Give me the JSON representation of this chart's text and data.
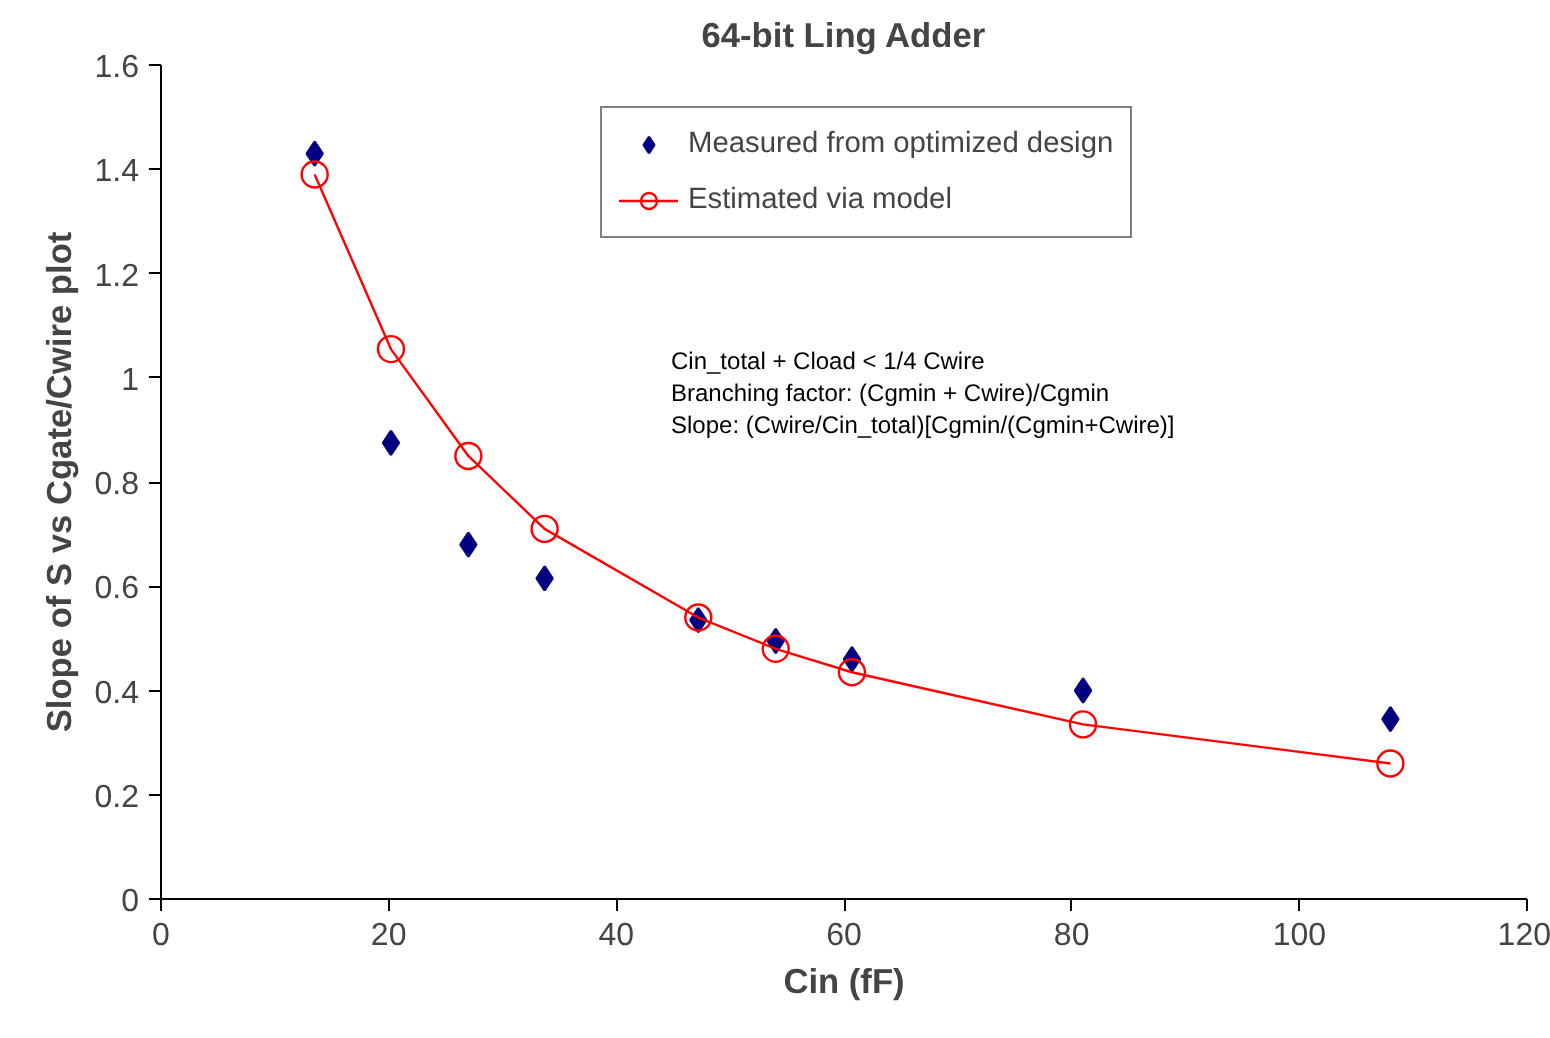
{
  "chart_data": {
    "type": "scatter",
    "title": "64-bit Ling Adder",
    "xlabel": "Cin (fF)",
    "ylabel": "Slope of S vs Cgate/Cwire plot",
    "x": [
      13.5,
      20.2,
      27,
      33.7,
      47.2,
      54,
      60.7,
      81,
      108
    ],
    "series": [
      {
        "name": "Measured from optimized design",
        "marker": "diamond",
        "color": "#000080",
        "values": [
          1.43,
          0.875,
          0.68,
          0.615,
          0.535,
          0.495,
          0.46,
          0.4,
          0.345
        ]
      },
      {
        "name": "Estimated via model",
        "type": "line",
        "marker": "circle",
        "color": "#ff0000",
        "values": [
          1.39,
          1.055,
          0.85,
          0.71,
          0.54,
          0.48,
          0.435,
          0.335,
          0.26
        ]
      }
    ],
    "xlim": [
      0,
      120
    ],
    "xticks": [
      0,
      20,
      40,
      60,
      80,
      100,
      120
    ],
    "ylim": [
      0,
      1.6
    ],
    "yticks": [
      0,
      0.2,
      0.4,
      0.6,
      0.8,
      1,
      1.2,
      1.4,
      1.6
    ],
    "grid": false,
    "legend": "top right",
    "annotations": [
      "Cin_total + Cload < 1/4 Cwire",
      "Branching factor: (Cgmin + Cwire)/Cgmin",
      "Slope: (Cwire/Cin_total)[Cgmin/(Cgmin+Cwire)]"
    ]
  }
}
